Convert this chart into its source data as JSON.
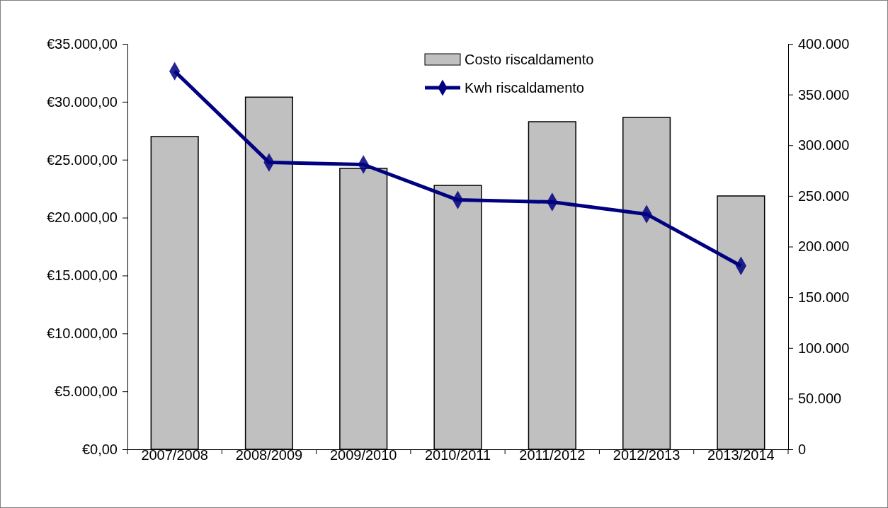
{
  "chart_data": {
    "type": "bar",
    "categories": [
      "2007/2008",
      "2008/2009",
      "2009/2010",
      "2010/2011",
      "2011/2012",
      "2012/2013",
      "2013/2014"
    ],
    "series": [
      {
        "name": "Costo riscaldamento",
        "color": "#c0c0c0",
        "values": [
          27000,
          30400,
          24250,
          22780,
          28280,
          28650,
          21870
        ]
      },
      {
        "name": "Kwh riscaldamento",
        "type": "line",
        "axis": "y2",
        "color": "#000080",
        "values": [
          373000,
          283000,
          281000,
          246000,
          244000,
          232000,
          181000
        ]
      }
    ],
    "ylim": [
      0,
      35000
    ],
    "yticks": [
      {
        "value": 0,
        "label": "€0,00"
      },
      {
        "value": 5000,
        "label": "€5.000,00"
      },
      {
        "value": 10000,
        "label": "€10.000,00"
      },
      {
        "value": 15000,
        "label": "€15.000,00"
      },
      {
        "value": 20000,
        "label": "€20.000,00"
      },
      {
        "value": 25000,
        "label": "€25.000,00"
      },
      {
        "value": 30000,
        "label": "€30.000,00"
      },
      {
        "value": 35000,
        "label": "€35.000,00"
      }
    ],
    "y2lim": [
      0,
      400000
    ],
    "y2ticks": [
      0,
      {
        "value": 50000,
        "label": "50.000"
      },
      {
        "value": 100000,
        "label": "100.000"
      },
      {
        "value": 150000,
        "label": "150.000"
      },
      {
        "value": 200000,
        "label": "200.000"
      },
      {
        "value": 250000,
        "label": "250.000"
      },
      {
        "value": 300000,
        "label": "300.000"
      },
      {
        "value": 350000,
        "label": "350.000"
      },
      {
        "value": 400000,
        "label": "400.000"
      }
    ],
    "legend": "top",
    "marker": "diamond",
    "grid": false
  }
}
